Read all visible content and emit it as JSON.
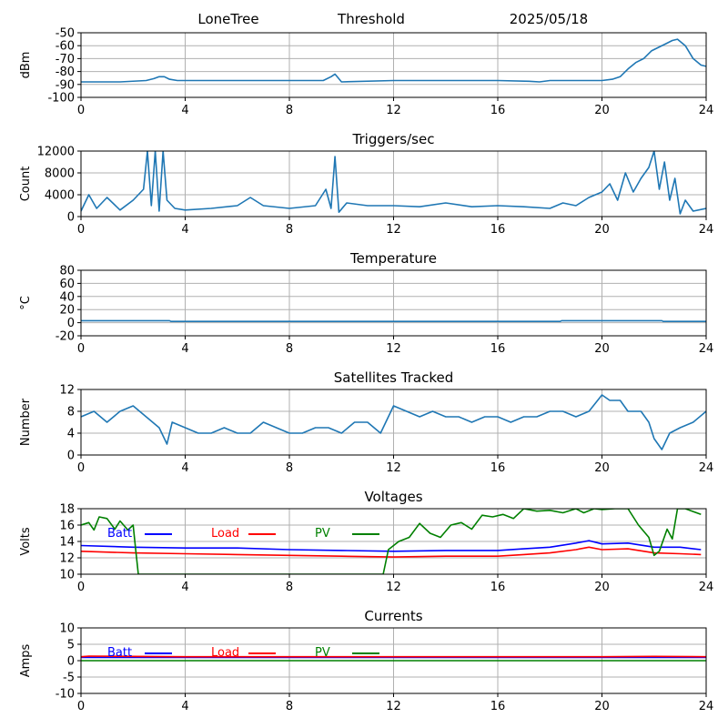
{
  "header": {
    "station": "LoneTree",
    "mode": "Threshold",
    "date": "2025/05/18"
  },
  "chart_data": [
    {
      "id": "signal",
      "type": "line",
      "title": "",
      "ylabel": "dBm",
      "xlim": [
        0,
        24
      ],
      "ylim": [
        -100,
        -50
      ],
      "xticks": [
        0,
        4,
        8,
        12,
        16,
        20,
        24
      ],
      "yticks": [
        -100,
        -90,
        -80,
        -70,
        -60,
        -50
      ],
      "grid": true,
      "series": [
        {
          "color": "#1f77b4",
          "x": [
            0,
            1.5,
            2.5,
            2.8,
            3.0,
            3.2,
            3.4,
            3.7,
            4,
            8,
            9.3,
            9.6,
            9.75,
            10.0,
            12,
            16,
            17.2,
            17.6,
            18,
            20,
            20.4,
            20.7,
            21.0,
            21.3,
            21.6,
            21.9,
            22.2,
            22.5,
            22.7,
            22.9,
            23.2,
            23.5,
            23.8,
            24
          ],
          "values": [
            -88,
            -88,
            -87,
            -85.5,
            -84,
            -84,
            -86,
            -87,
            -87,
            -87,
            -87,
            -84,
            -82,
            -88,
            -87,
            -87,
            -87.5,
            -88,
            -87,
            -87,
            -86,
            -84,
            -78,
            -73,
            -70,
            -64,
            -61,
            -58,
            -56,
            -55,
            -60,
            -70,
            -75,
            -76
          ]
        }
      ]
    },
    {
      "id": "triggers",
      "type": "line",
      "title": "Triggers/sec",
      "ylabel": "Count",
      "xlim": [
        0,
        24
      ],
      "ylim": [
        0,
        12000
      ],
      "xticks": [
        0,
        4,
        8,
        12,
        16,
        20,
        24
      ],
      "yticks": [
        0,
        4000,
        8000,
        12000
      ],
      "grid": true,
      "series": [
        {
          "color": "#1f77b4",
          "x": [
            0,
            0.3,
            0.6,
            1.0,
            1.5,
            2.0,
            2.4,
            2.55,
            2.7,
            2.85,
            3.0,
            3.15,
            3.3,
            3.6,
            4,
            5,
            6,
            6.5,
            7,
            8,
            9,
            9.4,
            9.6,
            9.75,
            9.9,
            10.2,
            11,
            12,
            13,
            14,
            15,
            16,
            17,
            18,
            18.5,
            19,
            19.5,
            20,
            20.3,
            20.6,
            20.9,
            21.2,
            21.5,
            21.8,
            22.0,
            22.2,
            22.4,
            22.6,
            22.8,
            23.0,
            23.2,
            23.5,
            24
          ],
          "values": [
            1000,
            4000,
            1500,
            3500,
            1200,
            3000,
            5000,
            12000,
            2000,
            12000,
            1000,
            12000,
            3000,
            1500,
            1200,
            1500,
            2000,
            3500,
            2000,
            1500,
            2000,
            5000,
            1500,
            11000,
            800,
            2500,
            2000,
            2000,
            1800,
            2500,
            1800,
            2000,
            1800,
            1500,
            2500,
            2000,
            3500,
            4500,
            6000,
            3000,
            8000,
            4500,
            7000,
            9000,
            12000,
            5000,
            10000,
            3000,
            7000,
            500,
            3000,
            1000,
            1500
          ]
        }
      ]
    },
    {
      "id": "temperature",
      "type": "line",
      "title": "Temperature",
      "ylabel": "°C",
      "xlim": [
        0,
        24
      ],
      "ylim": [
        -20,
        80
      ],
      "xticks": [
        0,
        4,
        8,
        12,
        16,
        20,
        24
      ],
      "yticks": [
        -20,
        0,
        20,
        40,
        60,
        80
      ],
      "grid": true,
      "series": [
        {
          "color": "#1f77b4",
          "x": [
            0,
            3.4,
            3.45,
            18.4,
            18.45,
            22.3,
            22.35,
            24
          ],
          "values": [
            3,
            3,
            2,
            2,
            3,
            3,
            2,
            2
          ]
        }
      ]
    },
    {
      "id": "satellites",
      "type": "line",
      "title": "Satellites Tracked",
      "ylabel": "Number",
      "xlim": [
        0,
        24
      ],
      "ylim": [
        0,
        12
      ],
      "xticks": [
        0,
        4,
        8,
        12,
        16,
        20,
        24
      ],
      "yticks": [
        0,
        4,
        8,
        12
      ],
      "grid": true,
      "series": [
        {
          "color": "#1f77b4",
          "x": [
            0,
            0.5,
            1,
            1.5,
            2,
            2.5,
            3,
            3.3,
            3.5,
            4,
            4.5,
            5,
            5.5,
            6,
            6.5,
            7,
            7.5,
            8,
            8.5,
            9,
            9.5,
            10,
            10.5,
            11,
            11.5,
            12,
            12.5,
            13,
            13.5,
            14,
            14.5,
            15,
            15.5,
            16,
            16.5,
            17,
            17.5,
            18,
            18.5,
            19,
            19.5,
            20,
            20.3,
            20.7,
            21,
            21.5,
            21.8,
            22,
            22.3,
            22.6,
            23,
            23.5,
            24
          ],
          "values": [
            7,
            8,
            6,
            8,
            9,
            7,
            5,
            2,
            6,
            5,
            4,
            4,
            5,
            4,
            4,
            6,
            5,
            4,
            4,
            5,
            5,
            4,
            6,
            6,
            4,
            9,
            8,
            7,
            8,
            7,
            7,
            6,
            7,
            7,
            6,
            7,
            7,
            8,
            8,
            7,
            8,
            11,
            10,
            10,
            8,
            8,
            6,
            3,
            1,
            4,
            5,
            6,
            8
          ]
        }
      ]
    },
    {
      "id": "voltages",
      "type": "line",
      "title": "Voltages",
      "ylabel": "Volts",
      "xlim": [
        0,
        24
      ],
      "ylim": [
        10,
        18
      ],
      "xticks": [
        0,
        4,
        8,
        12,
        16,
        20,
        24
      ],
      "yticks": [
        10,
        12,
        14,
        16,
        18
      ],
      "grid": true,
      "legend": [
        "Batt",
        "Load",
        "PV"
      ],
      "series": [
        {
          "name": "Batt",
          "color": "#0000ff",
          "x": [
            0,
            2,
            4,
            6,
            8,
            10,
            12,
            14,
            16,
            17,
            18,
            19,
            19.5,
            20,
            21,
            22,
            23,
            23.8
          ],
          "values": [
            13.5,
            13.3,
            13.2,
            13.2,
            13.0,
            12.9,
            12.8,
            12.9,
            12.9,
            13.1,
            13.3,
            13.8,
            14.1,
            13.7,
            13.8,
            13.3,
            13.3,
            13.0
          ]
        },
        {
          "name": "Load",
          "color": "#ff0000",
          "x": [
            0,
            2,
            4,
            6,
            8,
            10,
            12,
            14,
            16,
            17,
            18,
            19,
            19.5,
            20,
            21,
            22,
            23,
            23.8
          ],
          "values": [
            12.8,
            12.6,
            12.5,
            12.4,
            12.3,
            12.2,
            12.1,
            12.2,
            12.2,
            12.4,
            12.6,
            13.0,
            13.3,
            13.0,
            13.1,
            12.6,
            12.5,
            12.4
          ]
        },
        {
          "name": "PV",
          "color": "#008000",
          "x": [
            0,
            0.3,
            0.5,
            0.7,
            1.0,
            1.3,
            1.5,
            1.8,
            2.0,
            2.1,
            2.2,
            11.6,
            11.8,
            12.2,
            12.6,
            13.0,
            13.4,
            13.8,
            14.2,
            14.6,
            15.0,
            15.4,
            15.8,
            16.2,
            16.6,
            17.0,
            17.5,
            18.0,
            18.5,
            19.0,
            19.3,
            19.7,
            20.0,
            20.5,
            21.0,
            21.4,
            21.8,
            22.0,
            22.2,
            22.5,
            22.7,
            22.9,
            23.2,
            23.8
          ],
          "values": [
            16,
            16.3,
            15.4,
            17.0,
            16.8,
            15.5,
            16.5,
            15.4,
            16,
            13,
            10,
            10,
            13,
            14,
            14.5,
            16.2,
            15,
            14.5,
            16,
            16.3,
            15.5,
            17.2,
            17,
            17.3,
            16.8,
            18,
            17.7,
            17.8,
            17.5,
            18,
            17.5,
            18,
            17.9,
            18,
            18,
            16,
            14.5,
            12.3,
            12.8,
            15.5,
            14.3,
            18,
            18,
            17.3
          ]
        }
      ]
    },
    {
      "id": "currents",
      "type": "line",
      "title": "Currents",
      "ylabel": "Amps",
      "xlim": [
        0,
        24
      ],
      "ylim": [
        -10,
        10
      ],
      "xticks": [
        0,
        4,
        8,
        12,
        16,
        20,
        24
      ],
      "yticks": [
        -10,
        -5,
        0,
        5,
        10
      ],
      "grid": true,
      "legend": [
        "Batt",
        "Load",
        "PV"
      ],
      "series": [
        {
          "name": "Batt",
          "color": "#0000ff",
          "x": [
            0,
            24
          ],
          "values": [
            1.0,
            1.0
          ]
        },
        {
          "name": "Load",
          "color": "#ff0000",
          "x": [
            0,
            0.3,
            2,
            4,
            8,
            12,
            16,
            20,
            22,
            24
          ],
          "values": [
            1.2,
            1.4,
            1.3,
            1.2,
            1.2,
            1.2,
            1.2,
            1.2,
            1.3,
            1.2
          ]
        },
        {
          "name": "PV",
          "color": "#008000",
          "x": [
            0,
            24
          ],
          "values": [
            0,
            0
          ]
        }
      ]
    }
  ]
}
